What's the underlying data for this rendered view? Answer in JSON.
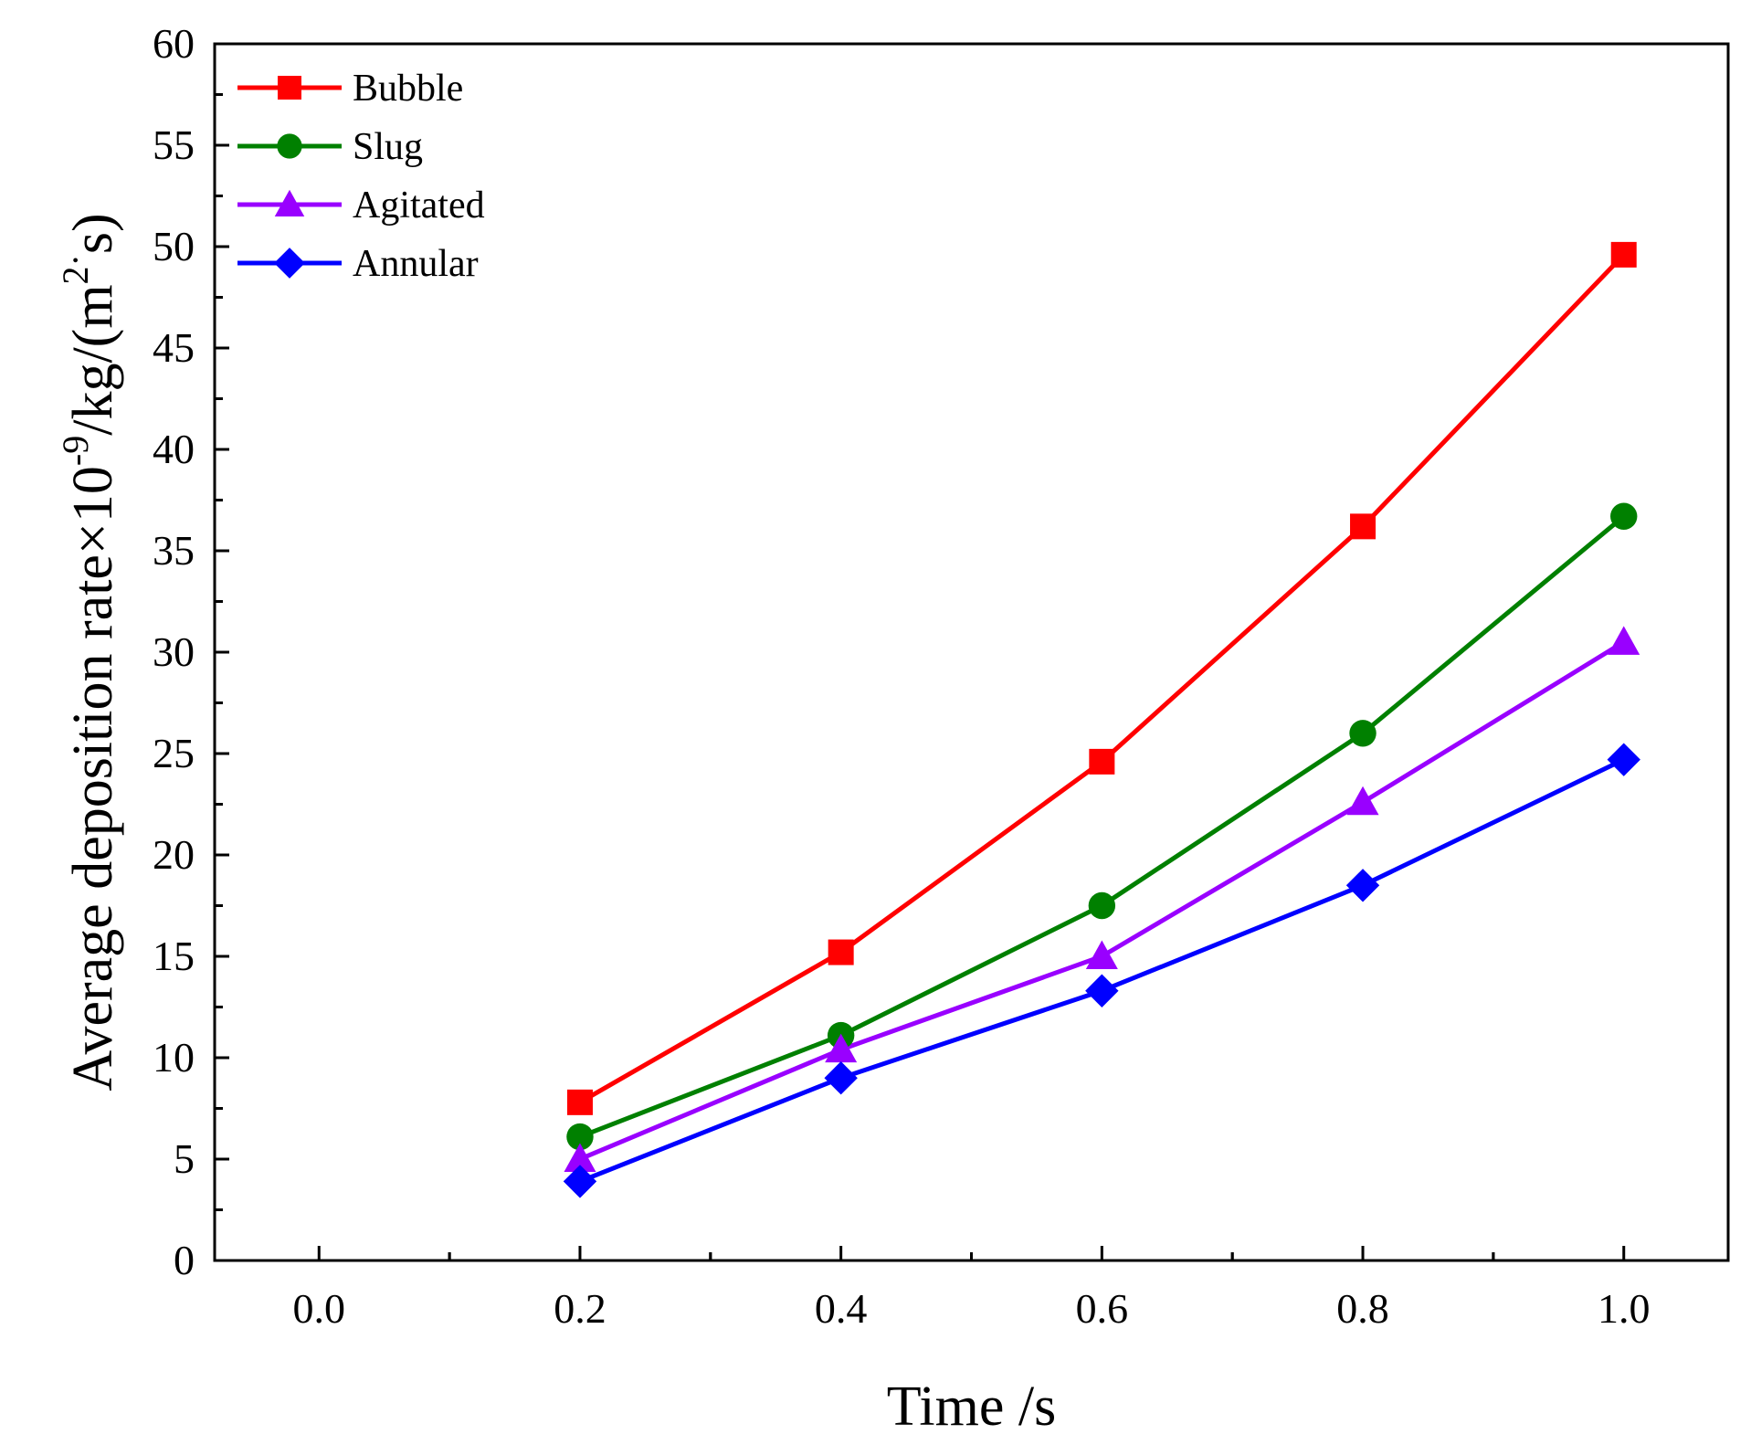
{
  "chart_data": {
    "type": "line",
    "title": "",
    "xlabel": "Time /s",
    "ylabel_parts": {
      "main": "Average deposition rate×10",
      "sup1": "-9",
      "mid": "/kg/(m",
      "sup2": "2",
      "dot": "·",
      "end": "s)"
    },
    "xlim": [
      -0.08,
      1.08
    ],
    "ylim": [
      0,
      60
    ],
    "x_ticks": [
      0.0,
      0.2,
      0.4,
      0.6,
      0.8,
      1.0
    ],
    "x_tick_labels": [
      "0.0",
      "0.2",
      "0.4",
      "0.6",
      "0.8",
      "1.0"
    ],
    "y_ticks": [
      0,
      5,
      10,
      15,
      20,
      25,
      30,
      35,
      40,
      45,
      50,
      55,
      60
    ],
    "y_tick_labels": [
      "0",
      "5",
      "10",
      "15",
      "20",
      "25",
      "30",
      "35",
      "40",
      "45",
      "50",
      "55",
      "60"
    ],
    "legend_position": "top-left",
    "grid": false,
    "x": [
      0.2,
      0.4,
      0.6,
      0.8,
      1.0
    ],
    "series": [
      {
        "name": "Bubble",
        "color": "#ff0000",
        "marker": "square",
        "values": [
          7.8,
          15.2,
          24.6,
          36.2,
          49.6
        ]
      },
      {
        "name": "Slug",
        "color": "#008000",
        "marker": "circle",
        "values": [
          6.1,
          11.1,
          17.5,
          26.0,
          36.7
        ]
      },
      {
        "name": "Agitated",
        "color": "#9900ff",
        "marker": "triangle",
        "values": [
          5.0,
          10.4,
          15.0,
          22.6,
          30.5
        ]
      },
      {
        "name": "Annular",
        "color": "#0000ff",
        "marker": "diamond",
        "values": [
          3.9,
          9.0,
          13.3,
          18.5,
          24.7
        ]
      }
    ]
  }
}
